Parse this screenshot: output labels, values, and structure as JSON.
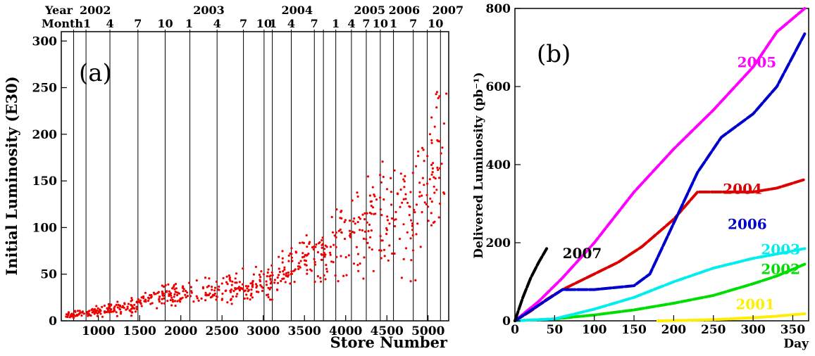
{
  "chart_data": [
    {
      "panel_label": "(a)",
      "type": "scatter",
      "xlabel": "Store Number",
      "ylabel": "Initial Luminosity (E30)",
      "xlim": [
        550,
        5250
      ],
      "ylim": [
        0,
        310
      ],
      "x_ticks": [
        1000,
        1500,
        2000,
        2500,
        3000,
        3500,
        4000,
        4500,
        5000
      ],
      "y_ticks": [
        0,
        50,
        100,
        150,
        200,
        250,
        300
      ],
      "grid": false,
      "marker_color": "#ee0000",
      "top_axis": {
        "year_label": "Year",
        "month_label": "Month",
        "year_markers": [
          {
            "label": "2002",
            "store": 700
          },
          {
            "label": "2003",
            "store": 2150
          },
          {
            "label": "2004",
            "store": 3220
          },
          {
            "label": "2005",
            "store": 4100
          },
          {
            "label": "2006",
            "store": 4520
          },
          {
            "label": "2007",
            "store": 5050
          }
        ],
        "month_markers": [
          {
            "label": "1",
            "store": 700
          },
          {
            "label": "4",
            "store": 1140
          },
          {
            "label": "7",
            "store": 1480
          },
          {
            "label": "10",
            "store": 1810
          },
          {
            "label": "1",
            "store": 2100
          },
          {
            "label": "4",
            "store": 2440
          },
          {
            "label": "7",
            "store": 2760
          },
          {
            "label": "10",
            "store": 3010
          },
          {
            "label": "1",
            "store": 3120
          },
          {
            "label": "4",
            "store": 3340
          },
          {
            "label": "7",
            "store": 3620
          },
          {
            "label": "1",
            "store": 3880
          },
          {
            "label": "4",
            "store": 4070
          },
          {
            "label": "7",
            "store": 4250
          },
          {
            "label": "10",
            "store": 4420
          },
          {
            "label": "1",
            "store": 4580
          },
          {
            "label": "7",
            "store": 4820
          },
          {
            "label": "10",
            "store": 5090
          }
        ]
      },
      "store_boundaries": [
        700,
        850,
        1140,
        1480,
        1810,
        2110,
        2440,
        2760,
        3010,
        3110,
        3340,
        3620,
        3730,
        3880,
        4070,
        4250,
        4420,
        4580,
        4820,
        4990,
        5150
      ],
      "trend": [
        {
          "x": 600,
          "y": 6,
          "spread": 2
        },
        {
          "x": 900,
          "y": 9,
          "spread": 3
        },
        {
          "x": 1150,
          "y": 12,
          "spread": 4
        },
        {
          "x": 1450,
          "y": 16,
          "spread": 6
        },
        {
          "x": 1700,
          "y": 25,
          "spread": 6
        },
        {
          "x": 2100,
          "y": 30,
          "spread": 8
        },
        {
          "x": 2500,
          "y": 33,
          "spread": 9
        },
        {
          "x": 2900,
          "y": 38,
          "spread": 10
        },
        {
          "x": 3200,
          "y": 50,
          "spread": 12
        },
        {
          "x": 3500,
          "y": 65,
          "spread": 15
        },
        {
          "x": 3800,
          "y": 75,
          "spread": 20
        },
        {
          "x": 4100,
          "y": 95,
          "spread": 25
        },
        {
          "x": 4500,
          "y": 110,
          "spread": 35
        },
        {
          "x": 4800,
          "y": 120,
          "spread": 45
        },
        {
          "x": 5000,
          "y": 150,
          "spread": 50
        },
        {
          "x": 5220,
          "y": 180,
          "spread": 55
        }
      ]
    },
    {
      "panel_label": "(b)",
      "type": "line",
      "xlabel": "Day",
      "ylabel": "Delivered Luminosity (pb⁻¹)",
      "xlim": [
        0,
        370
      ],
      "ylim": [
        0,
        800
      ],
      "x_ticks": [
        0,
        50,
        100,
        150,
        200,
        250,
        300,
        350
      ],
      "y_ticks": [
        0,
        200,
        400,
        600,
        800
      ],
      "grid": false,
      "series": [
        {
          "name": "2001",
          "color": "#ffee00",
          "x": [
            180,
            230,
            260,
            300,
            330,
            365
          ],
          "y": [
            0,
            2,
            4,
            8,
            12,
            18
          ],
          "label_x": 278,
          "label_y": 30
        },
        {
          "name": "2002",
          "color": "#00dd00",
          "x": [
            0,
            50,
            100,
            150,
            200,
            250,
            300,
            330,
            365
          ],
          "y": [
            0,
            5,
            15,
            28,
            45,
            65,
            95,
            115,
            145
          ],
          "label_x": 310,
          "label_y": 120
        },
        {
          "name": "2003",
          "color": "#00eeee",
          "x": [
            0,
            50,
            100,
            150,
            200,
            250,
            300,
            340,
            365
          ],
          "y": [
            0,
            5,
            30,
            60,
            100,
            135,
            160,
            175,
            185
          ],
          "label_x": 310,
          "label_y": 170
        },
        {
          "name": "2004",
          "color": "#dd0000",
          "x": [
            0,
            20,
            40,
            60,
            80,
            100,
            130,
            160,
            200,
            230,
            300,
            330,
            365
          ],
          "y": [
            0,
            25,
            55,
            80,
            100,
            120,
            150,
            190,
            260,
            330,
            330,
            340,
            362
          ],
          "label_x": 262,
          "label_y": 325
        },
        {
          "name": "2005",
          "color": "#ff00ff",
          "x": [
            0,
            30,
            60,
            100,
            150,
            200,
            250,
            300,
            330,
            365
          ],
          "y": [
            0,
            50,
            110,
            200,
            330,
            440,
            540,
            650,
            740,
            800
          ],
          "label_x": 280,
          "label_y": 650
        },
        {
          "name": "2006",
          "color": "#0000cc",
          "x": [
            0,
            30,
            60,
            100,
            150,
            170,
            200,
            230,
            260,
            300,
            330,
            365
          ],
          "y": [
            0,
            40,
            80,
            80,
            90,
            120,
            250,
            380,
            470,
            530,
            600,
            735
          ],
          "label_x": 268,
          "label_y": 235
        },
        {
          "name": "2007",
          "color": "#000000",
          "x": [
            0,
            10,
            20,
            30,
            40
          ],
          "y": [
            0,
            60,
            110,
            150,
            185
          ],
          "label_x": 60,
          "label_y": 160
        }
      ]
    }
  ]
}
